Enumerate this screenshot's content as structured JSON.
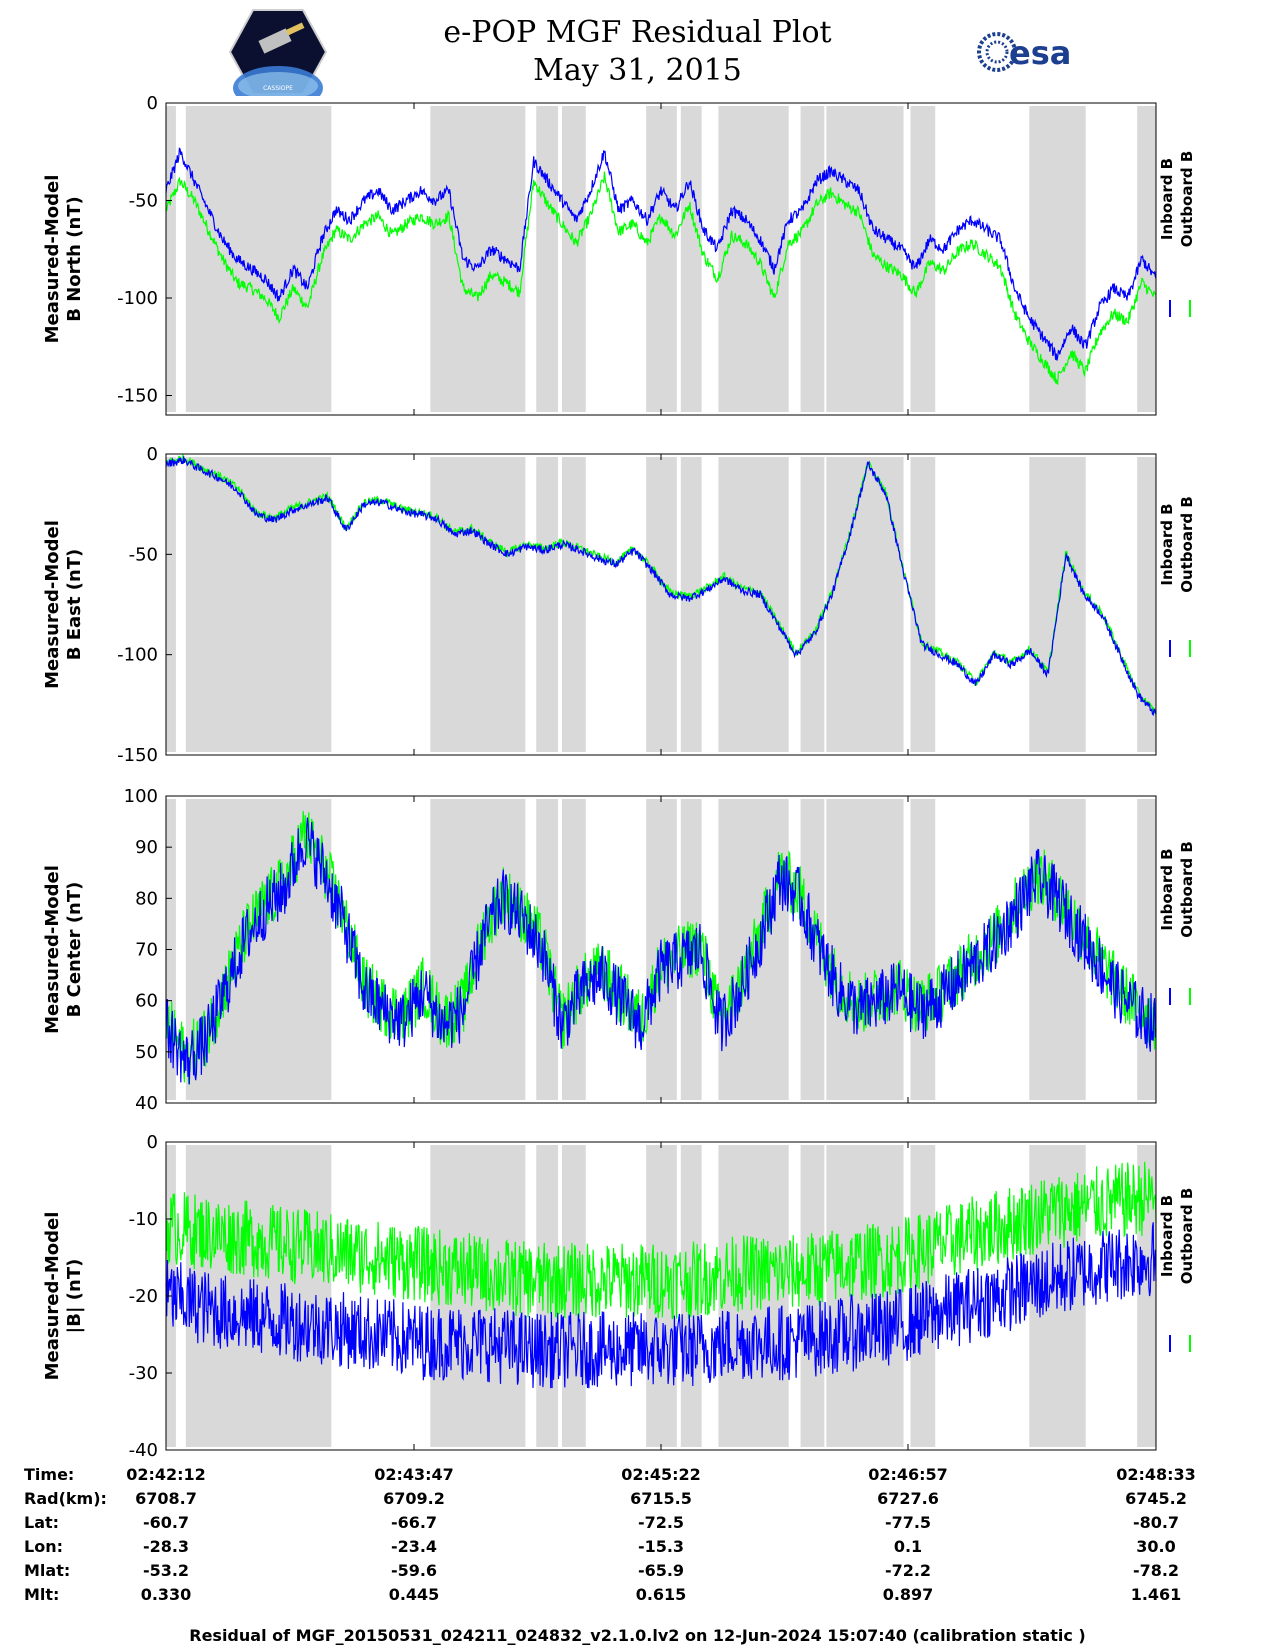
{
  "title": {
    "line1": "e-POP MGF Residual Plot",
    "line2": "May 31, 2015"
  },
  "logos": {
    "left": "cassiope-mission-logo",
    "left_text": "CASSIOPE",
    "right_text": "esa"
  },
  "colors": {
    "inboard": "#0000ff",
    "outboard": "#00ff00",
    "shade": "#d9d9d9"
  },
  "legend": {
    "inboard": "Inboard B",
    "outboard": "Outboard B"
  },
  "chart_data": [
    {
      "type": "line",
      "ylabel": [
        "Measured-Model",
        "B North (nT)"
      ],
      "ylim": [
        -160,
        0
      ],
      "yticks": [
        0,
        -50,
        -100,
        -150
      ],
      "tick_labels": [
        "0",
        "-50",
        "-100",
        "-150"
      ],
      "series": [
        {
          "name": "Inboard B",
          "values": [
            -45,
            -25,
            -40,
            -55,
            -70,
            -80,
            -85,
            -90,
            -100,
            -85,
            -95,
            -70,
            -55,
            -60,
            -50,
            -45,
            -55,
            -50,
            -45,
            -50,
            -45,
            -80,
            -85,
            -75,
            -80,
            -85,
            -30,
            -40,
            -50,
            -60,
            -45,
            -25,
            -55,
            -50,
            -60,
            -45,
            -55,
            -40,
            -65,
            -75,
            -55,
            -60,
            -70,
            -85,
            -60,
            -55,
            -40,
            -35,
            -40,
            -45,
            -65,
            -70,
            -75,
            -85,
            -70,
            -75,
            -65,
            -60,
            -65,
            -70,
            -95,
            -110,
            -120,
            -130,
            -115,
            -125,
            -105,
            -95,
            -100,
            -80,
            -90
          ]
        },
        {
          "name": "Outboard B",
          "values": [
            -55,
            -40,
            -50,
            -65,
            -80,
            -92,
            -95,
            -100,
            -110,
            -95,
            -105,
            -80,
            -65,
            -70,
            -62,
            -58,
            -68,
            -62,
            -58,
            -62,
            -58,
            -95,
            -100,
            -88,
            -92,
            -97,
            -40,
            -52,
            -62,
            -72,
            -58,
            -38,
            -66,
            -62,
            -72,
            -58,
            -68,
            -52,
            -78,
            -90,
            -68,
            -72,
            -82,
            -100,
            -72,
            -66,
            -52,
            -46,
            -52,
            -56,
            -78,
            -84,
            -88,
            -98,
            -82,
            -86,
            -76,
            -72,
            -78,
            -84,
            -108,
            -122,
            -132,
            -142,
            -128,
            -138,
            -118,
            -108,
            -112,
            -92,
            -100
          ]
        }
      ]
    },
    {
      "type": "line",
      "ylabel": [
        "Measured-Model",
        "B East (nT)"
      ],
      "ylim": [
        -150,
        0
      ],
      "yticks": [
        0,
        -50,
        -100,
        -150
      ],
      "tick_labels": [
        "0",
        "-50",
        "-100",
        "-150"
      ],
      "series": [
        {
          "name": "Inboard B",
          "values": [
            -5,
            -3,
            -8,
            -12,
            -18,
            -30,
            -33,
            -28,
            -25,
            -22,
            -38,
            -25,
            -24,
            -28,
            -30,
            -32,
            -40,
            -38,
            -45,
            -50,
            -46,
            -48,
            -45,
            -48,
            -52,
            -55,
            -48,
            -58,
            -70,
            -72,
            -68,
            -62,
            -68,
            -70,
            -85,
            -100,
            -90,
            -70,
            -40,
            -5,
            -20,
            -60,
            -95,
            -100,
            -105,
            -115,
            -100,
            -105,
            -98,
            -110,
            -50,
            -70,
            -80,
            -100,
            -120,
            -130
          ]
        },
        {
          "name": "Outboard B",
          "values": [
            -4,
            -2,
            -7,
            -11,
            -17,
            -29,
            -32,
            -27,
            -24,
            -21,
            -37,
            -24,
            -23,
            -27,
            -29,
            -31,
            -39,
            -37,
            -44,
            -49,
            -45,
            -47,
            -44,
            -47,
            -51,
            -54,
            -47,
            -57,
            -69,
            -71,
            -67,
            -61,
            -67,
            -69,
            -84,
            -99,
            -89,
            -69,
            -39,
            -4,
            -19,
            -59,
            -94,
            -99,
            -104,
            -114,
            -99,
            -104,
            -97,
            -109,
            -49,
            -69,
            -79,
            -99,
            -119,
            -129
          ]
        }
      ]
    },
    {
      "type": "line",
      "ylabel": [
        "Measured-Model",
        "B Center (nT)"
      ],
      "ylim": [
        40,
        100
      ],
      "yticks": [
        100,
        90,
        80,
        70,
        60,
        50,
        40
      ],
      "tick_labels": [
        "100",
        "90",
        "80",
        "70",
        "60",
        "50",
        "40"
      ],
      "series": [
        {
          "name": "Inboard B",
          "values": [
            55,
            48,
            52,
            62,
            72,
            78,
            82,
            92,
            85,
            75,
            62,
            58,
            56,
            62,
            55,
            58,
            72,
            80,
            76,
            70,
            55,
            62,
            65,
            60,
            55,
            66,
            68,
            70,
            55,
            62,
            72,
            84,
            80,
            70,
            62,
            58,
            60,
            62,
            58,
            60,
            64,
            68,
            72,
            78,
            84,
            80,
            74,
            68,
            62,
            58,
            55
          ]
        },
        {
          "name": "Outboard B",
          "values": [
            56,
            49,
            53,
            63,
            73,
            79,
            83,
            93,
            86,
            76,
            63,
            59,
            57,
            63,
            56,
            59,
            73,
            81,
            77,
            71,
            56,
            63,
            66,
            61,
            56,
            67,
            69,
            71,
            56,
            63,
            73,
            85,
            81,
            71,
            63,
            59,
            61,
            63,
            59,
            61,
            65,
            69,
            73,
            79,
            85,
            81,
            75,
            69,
            63,
            59,
            56
          ]
        }
      ]
    },
    {
      "type": "line",
      "ylabel": [
        "Measured-Model",
        "|B| (nT)"
      ],
      "ylim": [
        -40,
        0
      ],
      "yticks": [
        0,
        -10,
        -20,
        -30,
        -40
      ],
      "tick_labels": [
        "0",
        "-10",
        "-20",
        "-30",
        "-40"
      ],
      "series": [
        {
          "name": "Inboard B",
          "values": [
            -20,
            -22,
            -23,
            -24,
            -25,
            -26,
            -26,
            -27,
            -27,
            -27,
            -27,
            -26,
            -26,
            -25,
            -24,
            -22,
            -20,
            -18,
            -16,
            -15
          ]
        },
        {
          "name": "Outboard B",
          "values": [
            -11,
            -12,
            -13,
            -14,
            -15,
            -16,
            -17,
            -18,
            -18,
            -18,
            -18,
            -17,
            -17,
            -16,
            -15,
            -13,
            -11,
            -9,
            -8,
            -7
          ]
        }
      ]
    }
  ],
  "shade_segments": [
    [
      0.0,
      0.01
    ],
    [
      0.02,
      0.167
    ],
    [
      0.267,
      0.363
    ],
    [
      0.374,
      0.396
    ],
    [
      0.4,
      0.424
    ],
    [
      0.485,
      0.516
    ],
    [
      0.52,
      0.541
    ],
    [
      0.558,
      0.629
    ],
    [
      0.641,
      0.665
    ],
    [
      0.667,
      0.745
    ],
    [
      0.752,
      0.777
    ],
    [
      0.872,
      0.929
    ],
    [
      0.981,
      1.0
    ]
  ],
  "x_axis": {
    "rows": [
      {
        "label": "Time:",
        "values": [
          "02:42:12",
          "02:43:47",
          "02:45:22",
          "02:46:57",
          "02:48:33"
        ]
      },
      {
        "label": "Rad(km):",
        "values": [
          "6708.7",
          "6709.2",
          "6715.5",
          "6727.6",
          "6745.2"
        ]
      },
      {
        "label": "Lat:",
        "values": [
          "-60.7",
          "-66.7",
          "-72.5",
          "-77.5",
          "-80.7"
        ]
      },
      {
        "label": "Lon:",
        "values": [
          "-28.3",
          "-23.4",
          "-15.3",
          "0.1",
          "30.0"
        ]
      },
      {
        "label": "Mlat:",
        "values": [
          "-53.2",
          "-59.6",
          "-65.9",
          "-72.2",
          "-78.2"
        ]
      },
      {
        "label": "Mlt:",
        "values": [
          "0.330",
          "0.445",
          "0.615",
          "0.897",
          "1.461"
        ]
      }
    ]
  },
  "footer": "Residual of MGF_20150531_024211_024832_v2.1.0.lv2 on 12-Jun-2024 15:07:40 (calibration static )"
}
